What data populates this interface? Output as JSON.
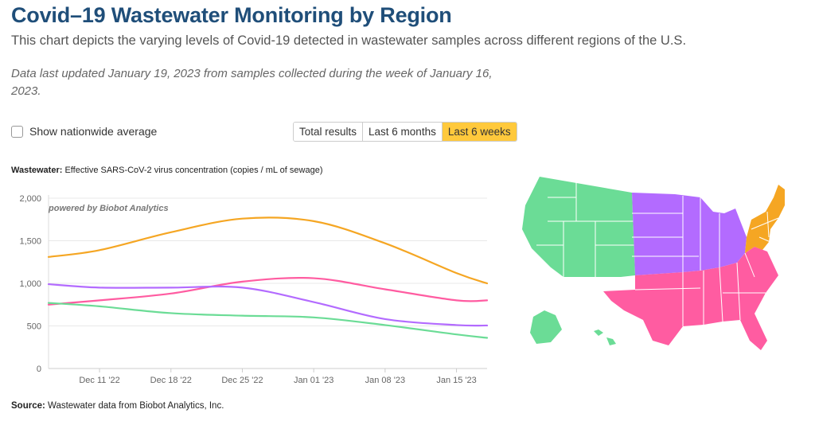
{
  "header": {
    "title": "Covid–19 Wastewater Monitoring by Region",
    "subtitle": "This chart depicts the varying levels of Covid-19 detected in wastewater samples across different regions of the U.S.",
    "updated": "Data last updated January 19, 2023 from samples collected during the week of January 16, 2023."
  },
  "controls": {
    "nationwide_label": "Show nationwide average",
    "nationwide_checked": false,
    "range_options": [
      "Total results",
      "Last 6 months",
      "Last 6 weeks"
    ],
    "range_selected": "Last 6 weeks"
  },
  "chart_caption": {
    "bold": "Wastewater:",
    "text": " Effective SARS-CoV-2 virus concentration (copies / mL of sewage)"
  },
  "source": {
    "bold": "Source:",
    "text": " Wastewater data from Biobot Analytics, Inc."
  },
  "chart_data": {
    "type": "line",
    "watermark": "powered by Biobot Analytics",
    "ylim": [
      0,
      2000
    ],
    "y_ticks": [
      0,
      500,
      1000,
      1500,
      2000
    ],
    "y_tick_labels": [
      "0",
      "500",
      "1,000",
      "1,500",
      "2,000"
    ],
    "x_range": [
      "2022-12-06",
      "2023-01-18"
    ],
    "x_ticks": [
      "2022-12-11",
      "2022-12-18",
      "2022-12-25",
      "2023-01-01",
      "2023-01-08",
      "2023-01-15"
    ],
    "x_tick_labels": [
      "Dec 11 '22",
      "Dec 18 '22",
      "Dec 25 '22",
      "Jan 01 '23",
      "Jan 08 '23",
      "Jan 15 '23"
    ],
    "x": [
      "2022-12-06",
      "2022-12-11",
      "2022-12-18",
      "2022-12-25",
      "2023-01-01",
      "2023-01-08",
      "2023-01-15",
      "2023-01-18"
    ],
    "series": [
      {
        "region": "northeast",
        "color": "#f5a623",
        "values": [
          1310,
          1390,
          1600,
          1760,
          1730,
          1470,
          1120,
          1000
        ]
      },
      {
        "region": "south",
        "color": "#ff5ca1",
        "values": [
          750,
          800,
          880,
          1020,
          1060,
          930,
          800,
          800
        ]
      },
      {
        "region": "midwest",
        "color": "#b36bff",
        "values": [
          990,
          950,
          950,
          950,
          780,
          580,
          510,
          505
        ]
      },
      {
        "region": "west",
        "color": "#6bdc96",
        "values": [
          770,
          730,
          650,
          620,
          600,
          510,
          400,
          360
        ]
      }
    ]
  },
  "map": {
    "regions": [
      {
        "id": "west",
        "color": "#6bdc96"
      },
      {
        "id": "midwest",
        "color": "#b36bff"
      },
      {
        "id": "south",
        "color": "#ff5ca1"
      },
      {
        "id": "northeast",
        "color": "#f5a623"
      }
    ]
  }
}
